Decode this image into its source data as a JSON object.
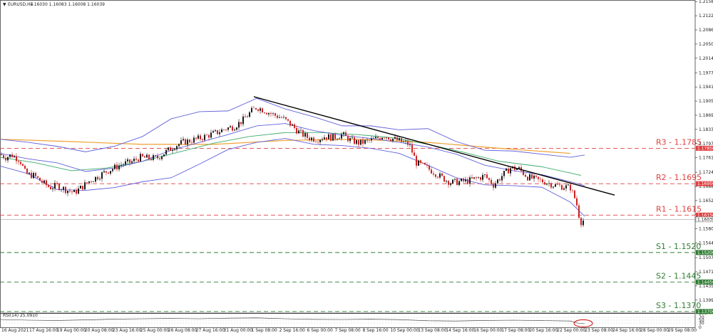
{
  "header": {
    "symbol": "EURUSD,H4",
    "ohlc": "1.16030 1.16083 1.16008 1.16039"
  },
  "rsi": {
    "label": "RSI(14) 25.0910",
    "value": 25.091,
    "ticks": [
      "100",
      "70",
      "50",
      "30",
      "0"
    ]
  },
  "chart_data": {
    "type": "candlestick",
    "ylim": [
      1.1366,
      1.2162
    ],
    "y_ticks": [
      "1.21580",
      "1.21220",
      "1.20860",
      "1.20500",
      "1.20140",
      "1.19770",
      "1.19410",
      "1.19050",
      "1.18690",
      "1.18330",
      "1.17970",
      "1.17610",
      "1.17240",
      "1.16880",
      "1.16520",
      "1.16160",
      "1.15800",
      "1.15440",
      "1.15070",
      "1.14710",
      "1.14350",
      "1.13990",
      "1.13630"
    ],
    "x_labels": [
      "16 Aug 2021",
      "17 Aug 16:00",
      "19 Aug 00:00",
      "20 Aug 08:00",
      "23 Aug 16:00",
      "25 Aug 00:00",
      "26 Aug 08:00",
      "27 Aug 16:00",
      "31 Aug 00:00",
      "1 Sep 08:00",
      "2 Sep 16:00",
      "6 Sep 00:00",
      "7 Sep 08:00",
      "8 Sep 16:00",
      "10 Sep 00:00",
      "13 Sep 08:00",
      "14 Sep 16:00",
      "16 Sep 00:00",
      "17 Sep 08:00",
      "20 Sep 16:00",
      "22 Sep 00:00",
      "23 Sep 08:00",
      "24 Sep 16:00",
      "28 Sep 00:00",
      "29 Sep 08:00"
    ],
    "levels": [
      {
        "label": "R3 - 1.1785",
        "value": 1.1785,
        "tag": "1.17850",
        "color": "#e04040",
        "type": "resistance"
      },
      {
        "label": "R2 - 1.1695",
        "value": 1.1695,
        "tag": "1.16950",
        "color": "#e04040",
        "type": "resistance"
      },
      {
        "label": "R1 - 1.1615",
        "value": 1.1615,
        "tag": "1.16150",
        "color": "#e04040",
        "type": "resistance"
      },
      {
        "label": "S1 - 1.1520",
        "value": 1.152,
        "tag": "1.15200",
        "color": "#2e7d32",
        "type": "support"
      },
      {
        "label": "S2 - 1.1445",
        "value": 1.1445,
        "tag": "1.14450",
        "color": "#2e7d32",
        "type": "support"
      },
      {
        "label": "S3 - 1.1370",
        "value": 1.137,
        "tag": "1.13700",
        "color": "#2e7d32",
        "type": "support"
      }
    ],
    "current_price": {
      "value": 1.1604,
      "tag": "1.16039"
    },
    "trendline": {
      "from": [
        356,
        1.1916
      ],
      "to": [
        862,
        1.1666
      ],
      "color": "#000000"
    },
    "price_path": [
      [
        0,
        1.177
      ],
      [
        8,
        1.1762
      ],
      [
        16,
        1.1768
      ],
      [
        28,
        1.1755
      ],
      [
        36,
        1.172
      ],
      [
        48,
        1.1715
      ],
      [
        58,
        1.17
      ],
      [
        70,
        1.1685
      ],
      [
        80,
        1.169
      ],
      [
        92,
        1.168
      ],
      [
        104,
        1.1672
      ],
      [
        114,
        1.1685
      ],
      [
        124,
        1.17
      ],
      [
        136,
        1.1712
      ],
      [
        148,
        1.1725
      ],
      [
        160,
        1.1735
      ],
      [
        172,
        1.1745
      ],
      [
        184,
        1.175
      ],
      [
        196,
        1.1762
      ],
      [
        208,
        1.176
      ],
      [
        220,
        1.176
      ],
      [
        232,
        1.1775
      ],
      [
        244,
        1.179
      ],
      [
        256,
        1.18
      ],
      [
        268,
        1.1805
      ],
      [
        280,
        1.181
      ],
      [
        292,
        1.1818
      ],
      [
        304,
        1.1825
      ],
      [
        316,
        1.1835
      ],
      [
        328,
        1.184
      ],
      [
        340,
        1.1855
      ],
      [
        352,
        1.1878
      ],
      [
        360,
        1.189
      ],
      [
        372,
        1.188
      ],
      [
        384,
        1.187
      ],
      [
        396,
        1.1862
      ],
      [
        408,
        1.1845
      ],
      [
        420,
        1.1825
      ],
      [
        432,
        1.1812
      ],
      [
        444,
        1.1808
      ],
      [
        456,
        1.1815
      ],
      [
        468,
        1.1812
      ],
      [
        480,
        1.182
      ],
      [
        492,
        1.1805
      ],
      [
        504,
        1.1798
      ],
      [
        514,
        1.1802
      ],
      [
        526,
        1.1808
      ],
      [
        538,
        1.1818
      ],
      [
        550,
        1.181
      ],
      [
        562,
        1.1802
      ],
      [
        574,
        1.1795
      ],
      [
        584,
        1.1748
      ],
      [
        596,
        1.1738
      ],
      [
        608,
        1.1725
      ],
      [
        620,
        1.171
      ],
      [
        632,
        1.1698
      ],
      [
        644,
        1.17
      ],
      [
        656,
        1.1702
      ],
      [
        668,
        1.1708
      ],
      [
        680,
        1.1715
      ],
      [
        692,
        1.1692
      ],
      [
        704,
        1.1715
      ],
      [
        716,
        1.1735
      ],
      [
        728,
        1.1732
      ],
      [
        740,
        1.1712
      ],
      [
        752,
        1.1705
      ],
      [
        764,
        1.17
      ],
      [
        776,
        1.1692
      ],
      [
        788,
        1.1688
      ],
      [
        800,
        1.1685
      ],
      [
        808,
        1.165
      ],
      [
        814,
        1.1597
      ],
      [
        820,
        1.1604
      ]
    ],
    "moving_averages": [
      {
        "color": "#f0a030",
        "points": [
          [
            0,
            1.1808
          ],
          [
            100,
            1.1802
          ],
          [
            200,
            1.1795
          ],
          [
            300,
            1.1795
          ],
          [
            400,
            1.1805
          ],
          [
            500,
            1.1808
          ],
          [
            600,
            1.18
          ],
          [
            700,
            1.1785
          ],
          [
            800,
            1.1772
          ]
        ]
      },
      {
        "color": "#3aaa6a",
        "points": [
          [
            0,
            1.1762
          ],
          [
            50,
            1.1748
          ],
          [
            100,
            1.1728
          ],
          [
            150,
            1.1735
          ],
          [
            200,
            1.1752
          ],
          [
            250,
            1.1775
          ],
          [
            300,
            1.1798
          ],
          [
            350,
            1.1815
          ],
          [
            400,
            1.1825
          ],
          [
            450,
            1.1825
          ],
          [
            500,
            1.182
          ],
          [
            550,
            1.1812
          ],
          [
            600,
            1.1795
          ],
          [
            650,
            1.1775
          ],
          [
            700,
            1.1752
          ],
          [
            760,
            1.1738
          ],
          [
            800,
            1.1722
          ],
          [
            815,
            1.1716
          ]
        ]
      },
      {
        "color": "#6060dd",
        "points": [
          [
            0,
            1.1772
          ],
          [
            40,
            1.1758
          ],
          [
            80,
            1.1748
          ],
          [
            120,
            1.1726
          ],
          [
            160,
            1.1735
          ],
          [
            200,
            1.1752
          ],
          [
            240,
            1.178
          ],
          [
            280,
            1.18
          ],
          [
            320,
            1.182
          ],
          [
            360,
            1.1842
          ],
          [
            400,
            1.1848
          ],
          [
            440,
            1.183
          ],
          [
            480,
            1.1818
          ],
          [
            520,
            1.181
          ],
          [
            560,
            1.18
          ],
          [
            600,
            1.1788
          ],
          [
            640,
            1.177
          ],
          [
            680,
            1.1742
          ],
          [
            720,
            1.1728
          ],
          [
            760,
            1.1718
          ],
          [
            800,
            1.17
          ],
          [
            820,
            1.169
          ]
        ]
      },
      {
        "color": "#6060dd",
        "points": [
          [
            0,
            1.1808
          ],
          [
            40,
            1.18
          ],
          [
            80,
            1.179
          ],
          [
            120,
            1.1776
          ],
          [
            160,
            1.179
          ],
          [
            200,
            1.1815
          ],
          [
            240,
            1.186
          ],
          [
            280,
            1.1878
          ],
          [
            320,
            1.188
          ],
          [
            360,
            1.1912
          ],
          [
            400,
            1.1885
          ],
          [
            440,
            1.1865
          ],
          [
            480,
            1.1842
          ],
          [
            520,
            1.1842
          ],
          [
            560,
            1.1832
          ],
          [
            600,
            1.1835
          ],
          [
            640,
            1.1802
          ],
          [
            680,
            1.178
          ],
          [
            720,
            1.1778
          ],
          [
            760,
            1.177
          ],
          [
            800,
            1.1762
          ],
          [
            820,
            1.1768
          ]
        ]
      },
      {
        "color": "#6060dd",
        "points": [
          [
            0,
            1.174
          ],
          [
            40,
            1.172
          ],
          [
            80,
            1.168
          ],
          [
            120,
            1.1678
          ],
          [
            160,
            1.1685
          ],
          [
            200,
            1.17
          ],
          [
            240,
            1.171
          ],
          [
            280,
            1.1745
          ],
          [
            320,
            1.1782
          ],
          [
            360,
            1.18
          ],
          [
            400,
            1.181
          ],
          [
            440,
            1.1795
          ],
          [
            480,
            1.1792
          ],
          [
            520,
            1.1785
          ],
          [
            560,
            1.1772
          ],
          [
            600,
            1.1742
          ],
          [
            640,
            1.171
          ],
          [
            680,
            1.1692
          ],
          [
            720,
            1.169
          ],
          [
            760,
            1.1686
          ],
          [
            800,
            1.1648
          ],
          [
            820,
            1.1612
          ]
        ]
      }
    ],
    "rsi_series": [
      [
        0,
        55
      ],
      [
        40,
        50
      ],
      [
        80,
        48
      ],
      [
        120,
        52
      ],
      [
        160,
        58
      ],
      [
        200,
        60
      ],
      [
        240,
        62
      ],
      [
        280,
        60
      ],
      [
        320,
        64
      ],
      [
        360,
        66
      ],
      [
        400,
        60
      ],
      [
        440,
        56
      ],
      [
        480,
        55
      ],
      [
        520,
        57
      ],
      [
        560,
        54
      ],
      [
        600,
        46
      ],
      [
        640,
        44
      ],
      [
        680,
        48
      ],
      [
        720,
        50
      ],
      [
        760,
        47
      ],
      [
        800,
        44
      ],
      [
        810,
        30
      ],
      [
        820,
        25
      ]
    ],
    "marker": {
      "x": 818,
      "rsi": 28,
      "color": "#cc0000"
    }
  }
}
